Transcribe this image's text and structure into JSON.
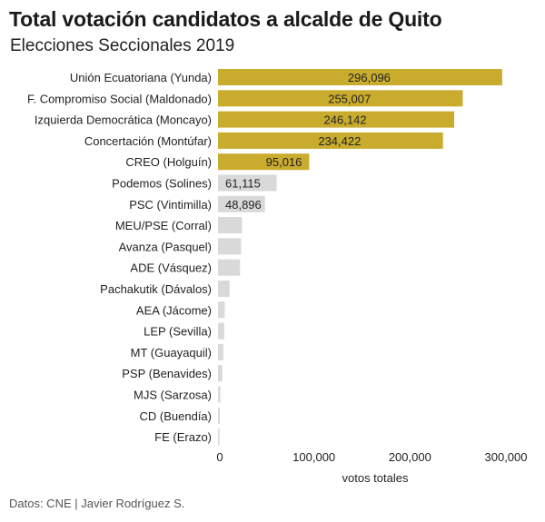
{
  "header": {
    "title": "Total votación candidatos a alcalde de Quito",
    "subtitle": "Elecciones Seccionales 2019"
  },
  "footer": {
    "source": "Datos: CNE | Javier Rodríguez S."
  },
  "colors": {
    "highlight": "#c9ac2e",
    "muted": "#d9d9d9",
    "text": "#222222",
    "axis": "#333333"
  },
  "chart_data": {
    "type": "bar",
    "orientation": "horizontal",
    "title": "Total votación candidatos a alcalde de Quito",
    "subtitle": "Elecciones Seccionales 2019",
    "xlabel": "votos totales",
    "ylabel": "",
    "xlim": [
      0,
      300000
    ],
    "xticks": [
      0,
      100000,
      200000,
      300000
    ],
    "xtick_labels": [
      "0",
      "100,000",
      "200,000",
      "300,000"
    ],
    "grid": false,
    "categories": [
      "Unión Ecuatoriana (Yunda)",
      "F. Compromiso Social (Maldonado)",
      "Izquierda Democrática (Moncayo)",
      "Concertación (Montúfar)",
      "CREO (Holguín)",
      "Podemos (Solines)",
      "PSC (Vintimilla)",
      "MEU/PSE (Corral)",
      "Avanza (Pasquel)",
      "ADE (Vásquez)",
      "Pachakutik (Dávalos)",
      "AEA (Jácome)",
      "LEP (Sevilla)",
      "MT (Guayaquil)",
      "PSP (Benavides)",
      "MJS (Sarzosa)",
      "CD (Buendía)",
      "FE (Erazo)"
    ],
    "values": [
      296096,
      255007,
      246142,
      234422,
      95016,
      61115,
      48896,
      25000,
      24000,
      23000,
      12000,
      7000,
      6500,
      5500,
      4500,
      2500,
      2000,
      1500
    ],
    "value_labels": [
      "296,096",
      "255,007",
      "246,142",
      "234,422",
      "95,016",
      "61,115",
      "48,896",
      "",
      "",
      "",
      "",
      "",
      "",
      "",
      "",
      "",
      "",
      ""
    ],
    "highlighted": [
      true,
      true,
      true,
      true,
      true,
      false,
      false,
      false,
      false,
      false,
      false,
      false,
      false,
      false,
      false,
      false,
      false,
      false
    ]
  }
}
